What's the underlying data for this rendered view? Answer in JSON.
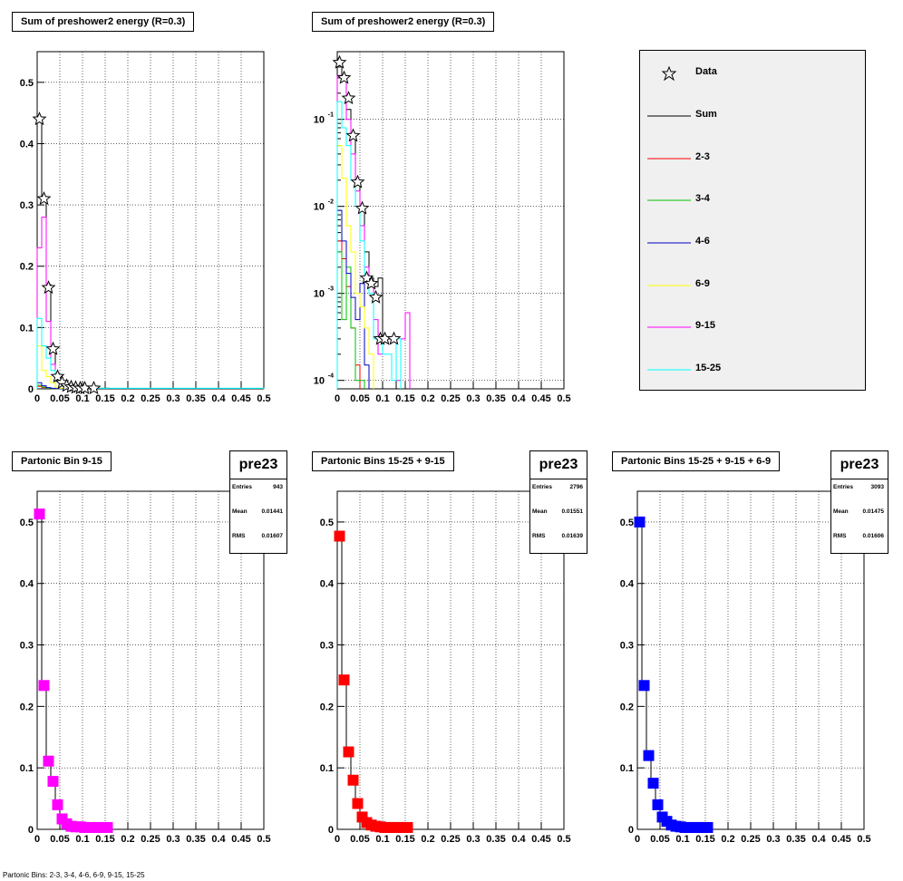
{
  "chart_data": [
    {
      "type": "histogram",
      "title": "Sum of preshower2 energy (R=0.3)",
      "xlim": [
        0,
        0.5
      ],
      "ylim": [
        0,
        0.55
      ],
      "log_y": false,
      "grid": true,
      "xticks": [
        "0",
        "0.05",
        "0.1",
        "0.15",
        "0.2",
        "0.25",
        "0.3",
        "0.35",
        "0.4",
        "0.45",
        "0.5"
      ],
      "yticks": [
        "0",
        "0.1",
        "0.2",
        "0.3",
        "0.4",
        "0.5"
      ],
      "bin_width": 0.01,
      "series": [
        {
          "name": "Sum",
          "color": "#000000",
          "values": [
            0.44,
            0.31,
            0.17,
            0.065,
            0.022,
            0.01,
            0.005,
            0.003,
            0.002,
            0.001,
            0.001,
            0.001,
            0.001,
            0.001,
            0.001,
            0.001
          ]
        },
        {
          "name": "2-3",
          "color": "#ff0000",
          "values": [
            0.004,
            0.002,
            0.001,
            0.0005,
            0.0002,
            0.0001
          ]
        },
        {
          "name": "3-4",
          "color": "#00c000",
          "values": [
            0.006,
            0.003,
            0.001,
            0.0005,
            0.0002,
            0.0001
          ]
        },
        {
          "name": "4-6",
          "color": "#0000c0",
          "values": [
            0.01,
            0.005,
            0.002,
            0.001,
            0.0004,
            0.0002
          ]
        },
        {
          "name": "6-9",
          "color": "#ffff00",
          "values": [
            0.07,
            0.03,
            0.02,
            0.01,
            0.003,
            0.001,
            0.0005
          ]
        },
        {
          "name": "9-15",
          "color": "#ff00ff",
          "values": [
            0.23,
            0.28,
            0.11,
            0.04,
            0.015,
            0.006,
            0.003,
            0.001,
            0.0005
          ]
        },
        {
          "name": "15-25",
          "color": "#00ffff",
          "values": [
            0.115,
            0.07,
            0.05,
            0.03,
            0.012,
            0.006,
            0.003,
            0.002,
            0.001,
            0.001,
            0.001,
            0.001,
            0.001,
            0.001,
            0.001,
            0.001,
            0.001,
            0.001,
            0.001,
            0.001,
            0.001,
            0.001,
            0.001,
            0.001,
            0.001,
            0.001,
            0.001,
            0.001,
            0.001,
            0.001,
            0.001,
            0.001,
            0.001,
            0.001,
            0.001,
            0.001,
            0.001,
            0.001,
            0.001,
            0.001,
            0.001,
            0.001,
            0.001,
            0.001,
            0.001,
            0.001,
            0.001,
            0.001,
            0.001,
            0.001
          ]
        }
      ],
      "data_points": {
        "name": "Data",
        "x": [
          0.005,
          0.015,
          0.025,
          0.035,
          0.045,
          0.055,
          0.065,
          0.075,
          0.085,
          0.095,
          0.105,
          0.125
        ],
        "y": [
          0.44,
          0.31,
          0.165,
          0.065,
          0.02,
          0.01,
          0.005,
          0.003,
          0.002,
          0.001,
          0.001,
          0.001
        ]
      }
    },
    {
      "type": "histogram",
      "title": "Sum of preshower2 energy (R=0.3)",
      "xlim": [
        0,
        0.5
      ],
      "ylim": [
        8e-05,
        0.6
      ],
      "log_y": true,
      "grid": true,
      "xticks": [
        "0",
        "0.05",
        "0.1",
        "0.15",
        "0.2",
        "0.25",
        "0.3",
        "0.35",
        "0.4",
        "0.45",
        "0.5"
      ],
      "bin_width": 0.01,
      "series": [
        {
          "name": "Sum",
          "color": "#000000",
          "values": [
            0.45,
            0.32,
            0.13,
            0.06,
            0.02,
            0.009,
            0.003,
            0.0015,
            0.0012,
            0.0015,
            0.0003,
            0.0003,
            0.0003
          ]
        },
        {
          "name": "2-3",
          "color": "#ff0000",
          "values": [
            0.004,
            0.0025,
            0.0012,
            0.0004,
            0.00015
          ]
        },
        {
          "name": "3-4",
          "color": "#00c000",
          "values": [
            0.003,
            0.0005,
            0.002,
            0.0004,
            0.0001,
            0.0001
          ]
        },
        {
          "name": "4-6",
          "color": "#0000c0",
          "values": [
            0.009,
            0.004,
            0.0017,
            0.0009,
            0.0005,
            0.0013,
            0.00015
          ]
        },
        {
          "name": "6-9",
          "color": "#ffff00",
          "values": [
            0.05,
            0.021,
            0.006,
            0.003,
            0.001,
            0.0007,
            0.0004,
            0.0002
          ]
        },
        {
          "name": "9-15",
          "color": "#ff00ff",
          "values": [
            0.32,
            0.28,
            0.1,
            0.04,
            0.015,
            0.006,
            0.002,
            0.0012,
            0.0005,
            0.0002,
            0.0003,
            0.0003,
            0.0003,
            0.0001,
            0.0003,
            0.0006
          ]
        },
        {
          "name": "15-25",
          "color": "#00ffff",
          "values": [
            0.16,
            0.08,
            0.05,
            0.02,
            0.01,
            0.004,
            0.0016,
            0.001,
            0.0003,
            0.0003,
            0.0002,
            0.0002,
            0.0001,
            0.0003
          ]
        }
      ],
      "data_points": {
        "name": "Data",
        "x": [
          0.005,
          0.015,
          0.025,
          0.035,
          0.045,
          0.055,
          0.065,
          0.075,
          0.085,
          0.095,
          0.105,
          0.125
        ],
        "y": [
          0.45,
          0.3,
          0.175,
          0.065,
          0.019,
          0.0095,
          0.0015,
          0.0013,
          0.0009,
          0.0003,
          0.0003,
          0.0003
        ]
      }
    },
    {
      "type": "histogram",
      "title": "Partonic Bin 9-15",
      "stats": {
        "name": "pre23",
        "entries_label": "Entries",
        "entries": "943",
        "mean_label": "Mean",
        "mean": "0.01441",
        "rms_label": "RMS",
        "rms": "0.01607"
      },
      "xlim": [
        0,
        0.5
      ],
      "ylim": [
        0,
        0.55
      ],
      "log_y": false,
      "grid": true,
      "xticks": [
        "0",
        "0.05",
        "0.1",
        "0.15",
        "0.2",
        "0.25",
        "0.3",
        "0.35",
        "0.4",
        "0.45",
        "0.5"
      ],
      "yticks": [
        "0",
        "0.1",
        "0.2",
        "0.3",
        "0.4",
        "0.5"
      ],
      "bin_width": 0.01,
      "marker_color": "#ff00ff",
      "x": [
        0.005,
        0.015,
        0.025,
        0.035,
        0.045,
        0.055,
        0.065,
        0.075,
        0.085,
        0.095,
        0.105,
        0.115,
        0.125,
        0.135,
        0.145,
        0.155
      ],
      "y": [
        0.513,
        0.234,
        0.111,
        0.078,
        0.04,
        0.017,
        0.009,
        0.005,
        0.004,
        0.004,
        0.003,
        0.003,
        0.003,
        0.003,
        0.003,
        0.003
      ]
    },
    {
      "type": "histogram",
      "title": "Partonic Bins 15-25 + 9-15",
      "stats": {
        "name": "pre23",
        "entries_label": "Entries",
        "entries": "2796",
        "mean_label": "Mean",
        "mean": "0.01551",
        "rms_label": "RMS",
        "rms": "0.01639"
      },
      "xlim": [
        0,
        0.5
      ],
      "ylim": [
        0,
        0.55
      ],
      "log_y": false,
      "grid": true,
      "xticks": [
        "0",
        "0.05",
        "0.1",
        "0.15",
        "0.2",
        "0.25",
        "0.3",
        "0.35",
        "0.4",
        "0.45",
        "0.5"
      ],
      "yticks": [
        "0",
        "0.1",
        "0.2",
        "0.3",
        "0.4",
        "0.5"
      ],
      "bin_width": 0.01,
      "marker_color": "#ff0000",
      "x": [
        0.005,
        0.015,
        0.025,
        0.035,
        0.045,
        0.055,
        0.065,
        0.075,
        0.085,
        0.095,
        0.105,
        0.115,
        0.125,
        0.135,
        0.145,
        0.155
      ],
      "y": [
        0.477,
        0.243,
        0.126,
        0.08,
        0.042,
        0.02,
        0.011,
        0.007,
        0.005,
        0.004,
        0.003,
        0.003,
        0.003,
        0.003,
        0.003,
        0.003
      ]
    },
    {
      "type": "histogram",
      "title": "Partonic Bins 15-25 + 9-15 + 6-9",
      "stats": {
        "name": "pre23",
        "entries_label": "Entries",
        "entries": "3093",
        "mean_label": "Mean",
        "mean": "0.01475",
        "rms_label": "RMS",
        "rms": "0.01606"
      },
      "xlim": [
        0,
        0.5
      ],
      "ylim": [
        0,
        0.55
      ],
      "log_y": false,
      "grid": true,
      "xticks": [
        "0",
        "0.05",
        "0.1",
        "0.15",
        "0.2",
        "0.25",
        "0.3",
        "0.35",
        "0.4",
        "0.45",
        "0.5"
      ],
      "yticks": [
        "0",
        "0.1",
        "0.2",
        "0.3",
        "0.4",
        "0.5"
      ],
      "bin_width": 0.01,
      "marker_color": "#0000ff",
      "x": [
        0.005,
        0.015,
        0.025,
        0.035,
        0.045,
        0.055,
        0.065,
        0.075,
        0.085,
        0.095,
        0.105,
        0.115,
        0.125,
        0.135,
        0.145,
        0.155
      ],
      "y": [
        0.5,
        0.234,
        0.12,
        0.075,
        0.04,
        0.02,
        0.013,
        0.007,
        0.005,
        0.004,
        0.003,
        0.003,
        0.003,
        0.003,
        0.003,
        0.003
      ]
    }
  ],
  "legend": {
    "entries": [
      {
        "label": "Data",
        "kind": "marker",
        "color": "#000000"
      },
      {
        "label": "Sum",
        "kind": "line",
        "color": "#000000"
      },
      {
        "label": "2-3",
        "kind": "line",
        "color": "#ff0000"
      },
      {
        "label": "3-4",
        "kind": "line",
        "color": "#00c000"
      },
      {
        "label": "4-6",
        "kind": "line",
        "color": "#0000c0"
      },
      {
        "label": "6-9",
        "kind": "line",
        "color": "#ffff00"
      },
      {
        "label": "9-15",
        "kind": "line",
        "color": "#ff00ff"
      },
      {
        "label": "15-25",
        "kind": "line",
        "color": "#00ffff"
      }
    ]
  },
  "footer_text": "Partonic Bins: 2-3, 3-4, 4-6, 6-9, 9-15, 15-25"
}
